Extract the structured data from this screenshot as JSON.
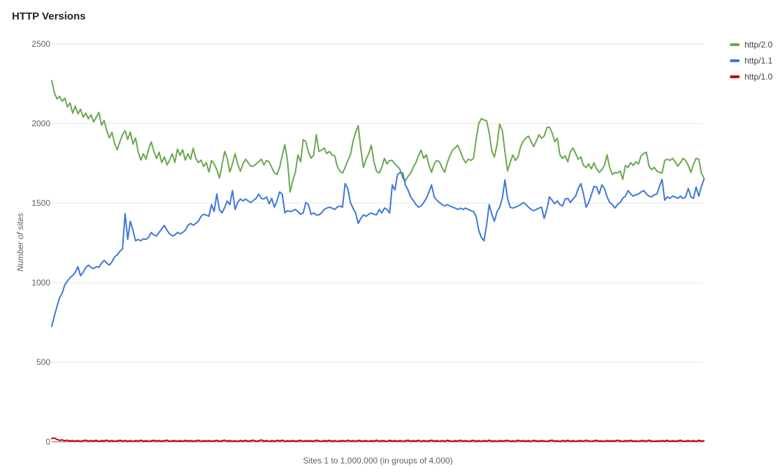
{
  "page": {
    "title": "HTTP Versions"
  },
  "chart_data": {
    "type": "line",
    "title": "HTTP Versions",
    "xlabel": "Sites 1 to 1,000,000 (in groups of 4,000)",
    "ylabel": "Number of sites",
    "ylim": [
      0,
      2500
    ],
    "yticks": [
      0,
      500,
      1000,
      1500,
      2000,
      2500
    ],
    "x_range_sites": [
      1,
      1000000
    ],
    "group_size": 4000,
    "n_points": 250,
    "grid": true,
    "legend_position": "top-right",
    "grid_color": "#e6e6e6",
    "baseline_color": "#616161",
    "series": [
      {
        "name": "http/2.0",
        "color": "#6aa84f",
        "values": [
          2270,
          2195,
          2155,
          2170,
          2140,
          2160,
          2105,
          2130,
          2065,
          2110,
          2060,
          2090,
          2040,
          2065,
          2030,
          2055,
          2010,
          2040,
          2070,
          1990,
          2020,
          1955,
          1910,
          1945,
          1875,
          1835,
          1885,
          1930,
          1955,
          1900,
          1945,
          1870,
          1910,
          1820,
          1770,
          1810,
          1775,
          1840,
          1885,
          1825,
          1780,
          1820,
          1755,
          1790,
          1740,
          1770,
          1810,
          1755,
          1840,
          1800,
          1835,
          1770,
          1810,
          1775,
          1845,
          1780,
          1755,
          1770,
          1730,
          1755,
          1695,
          1768,
          1745,
          1710,
          1658,
          1740,
          1825,
          1780,
          1695,
          1745,
          1811,
          1745,
          1700,
          1746,
          1776,
          1754,
          1732,
          1732,
          1746,
          1759,
          1776,
          1741,
          1768,
          1759,
          1724,
          1690,
          1680,
          1724,
          1800,
          1868,
          1768,
          1570,
          1640,
          1693,
          1803,
          1759,
          1899,
          1886,
          1820,
          1781,
          1803,
          1930,
          1825,
          1833,
          1846,
          1811,
          1825,
          1803,
          1798,
          1732,
          1700,
          1689,
          1724,
          1768,
          1803,
          1886,
          1945,
          1987,
          1842,
          1724,
          1776,
          1811,
          1864,
          1759,
          1700,
          1689,
          1724,
          1781,
          1746,
          1768,
          1768,
          1745,
          1732,
          1710,
          1658,
          1640,
          1667,
          1689,
          1724,
          1754,
          1798,
          1833,
          1781,
          1803,
          1737,
          1693,
          1746,
          1768,
          1759,
          1724,
          1693,
          1754,
          1798,
          1833,
          1846,
          1864,
          1825,
          1781,
          1754,
          1776,
          1768,
          1781,
          1899,
          2000,
          2031,
          2022,
          2018,
          1943,
          1825,
          1790,
          1868,
          1996,
          1956,
          1825,
          1702,
          1754,
          1803,
          1768,
          1790,
          1855,
          1890,
          1908,
          1921,
          1886,
          1855,
          1890,
          1930,
          1908,
          1921,
          1974,
          1978,
          1943,
          1886,
          1908,
          1803,
          1781,
          1798,
          1759,
          1825,
          1846,
          1811,
          1776,
          1790,
          1737,
          1724,
          1746,
          1715,
          1754,
          1715,
          1693,
          1710,
          1737,
          1803,
          1724,
          1680,
          1693,
          1689,
          1702,
          1649,
          1737,
          1724,
          1754,
          1737,
          1759,
          1746,
          1798,
          1811,
          1820,
          1732,
          1710,
          1724,
          1702,
          1693,
          1689,
          1768,
          1776,
          1768,
          1781,
          1759,
          1732,
          1754,
          1781,
          1768,
          1737,
          1693,
          1746,
          1781,
          1776,
          1689,
          1655
        ]
      },
      {
        "name": "http/1.1",
        "color": "#3c78d8",
        "values": [
          725,
          790,
          850,
          905,
          935,
          987,
          1010,
          1031,
          1045,
          1066,
          1100,
          1044,
          1066,
          1096,
          1110,
          1096,
          1088,
          1101,
          1096,
          1123,
          1140,
          1123,
          1110,
          1131,
          1162,
          1175,
          1197,
          1210,
          1434,
          1272,
          1386,
          1329,
          1263,
          1272,
          1263,
          1276,
          1272,
          1285,
          1316,
          1299,
          1294,
          1316,
          1338,
          1360,
          1329,
          1307,
          1294,
          1299,
          1316,
          1307,
          1316,
          1329,
          1360,
          1373,
          1360,
          1373,
          1386,
          1417,
          1430,
          1425,
          1417,
          1491,
          1447,
          1557,
          1460,
          1438,
          1473,
          1513,
          1491,
          1579,
          1460,
          1504,
          1526,
          1513,
          1526,
          1513,
          1504,
          1517,
          1530,
          1557,
          1530,
          1526,
          1539,
          1496,
          1530,
          1474,
          1513,
          1570,
          1557,
          1438,
          1452,
          1447,
          1452,
          1460,
          1447,
          1430,
          1438,
          1504,
          1491,
          1430,
          1438,
          1426,
          1426,
          1438,
          1460,
          1469,
          1474,
          1469,
          1460,
          1474,
          1482,
          1474,
          1623,
          1592,
          1504,
          1469,
          1438,
          1373,
          1404,
          1426,
          1417,
          1430,
          1438,
          1430,
          1426,
          1460,
          1438,
          1469,
          1460,
          1438,
          1614,
          1583,
          1680,
          1693,
          1689,
          1614,
          1583,
          1539,
          1518,
          1491,
          1474,
          1482,
          1504,
          1530,
          1570,
          1614,
          1539,
          1518,
          1504,
          1491,
          1482,
          1491,
          1482,
          1474,
          1469,
          1460,
          1469,
          1460,
          1469,
          1460,
          1452,
          1447,
          1417,
          1329,
          1285,
          1263,
          1360,
          1491,
          1430,
          1386,
          1447,
          1474,
          1530,
          1645,
          1530,
          1474,
          1469,
          1474,
          1482,
          1491,
          1504,
          1491,
          1474,
          1460,
          1452,
          1460,
          1469,
          1474,
          1404,
          1460,
          1539,
          1518,
          1496,
          1513,
          1491,
          1482,
          1526,
          1530,
          1504,
          1526,
          1544,
          1592,
          1623,
          1557,
          1474,
          1504,
          1552,
          1605,
          1601,
          1557,
          1614,
          1592,
          1539,
          1504,
          1491,
          1469,
          1491,
          1504,
          1530,
          1544,
          1579,
          1557,
          1544,
          1552,
          1557,
          1570,
          1579,
          1557,
          1544,
          1539,
          1552,
          1557,
          1605,
          1649,
          1518,
          1539,
          1530,
          1544,
          1539,
          1530,
          1544,
          1530,
          1539,
          1592,
          1539,
          1530,
          1601,
          1544,
          1605,
          1650
        ]
      },
      {
        "name": "http/1.0",
        "color": "#cc0000",
        "values": [
          20,
          24,
          15,
          9,
          12,
          7,
          10,
          5,
          8,
          4,
          8,
          3,
          7,
          10,
          4,
          8,
          5,
          9,
          3,
          7,
          6,
          10,
          4,
          8,
          3,
          6,
          9,
          5,
          8,
          4,
          7,
          3,
          8,
          5,
          10,
          4,
          7,
          3,
          6,
          9,
          5,
          8,
          4,
          7,
          10,
          3,
          6,
          8,
          4,
          7,
          3,
          9,
          5,
          8,
          4,
          6,
          10,
          3,
          7,
          5,
          8,
          4,
          6,
          9,
          3,
          7,
          10,
          5,
          8,
          4,
          6,
          3,
          8,
          5,
          9,
          4,
          7,
          10,
          3,
          6,
          12,
          5,
          8,
          3,
          7,
          4,
          9,
          6,
          10,
          3,
          7,
          5,
          8,
          4,
          6,
          9,
          3,
          8,
          5,
          7,
          4,
          10,
          6,
          3,
          8,
          5,
          9,
          4,
          7,
          3,
          6,
          8,
          4,
          10,
          5,
          7,
          3,
          9,
          6,
          4,
          8,
          3,
          7,
          5,
          10,
          4,
          8,
          6,
          3,
          9,
          5,
          7,
          4,
          8,
          3,
          6,
          10,
          4,
          7,
          5,
          9,
          3,
          8,
          4,
          6,
          10,
          5,
          7,
          3,
          8,
          4,
          9,
          6,
          3,
          7,
          5,
          10,
          4,
          8,
          3,
          6,
          9,
          4,
          7,
          3,
          8,
          5,
          10,
          4,
          6,
          3,
          8,
          5,
          7,
          9,
          4,
          6,
          3,
          10,
          5,
          8,
          4,
          7,
          3,
          9,
          6,
          4,
          8,
          5,
          3,
          7,
          10,
          4,
          6,
          3,
          8,
          5,
          9,
          4,
          7,
          3,
          6,
          8,
          4,
          10,
          5,
          3,
          7,
          9,
          4,
          6,
          3,
          8,
          5,
          7,
          4,
          10,
          6,
          3,
          8,
          5,
          9,
          4,
          6,
          3,
          7,
          8,
          4,
          10,
          5,
          3,
          6,
          4,
          8,
          5,
          9,
          3,
          7,
          4,
          6,
          10,
          3,
          5,
          8,
          4,
          7,
          3,
          9,
          5,
          6
        ]
      }
    ]
  }
}
